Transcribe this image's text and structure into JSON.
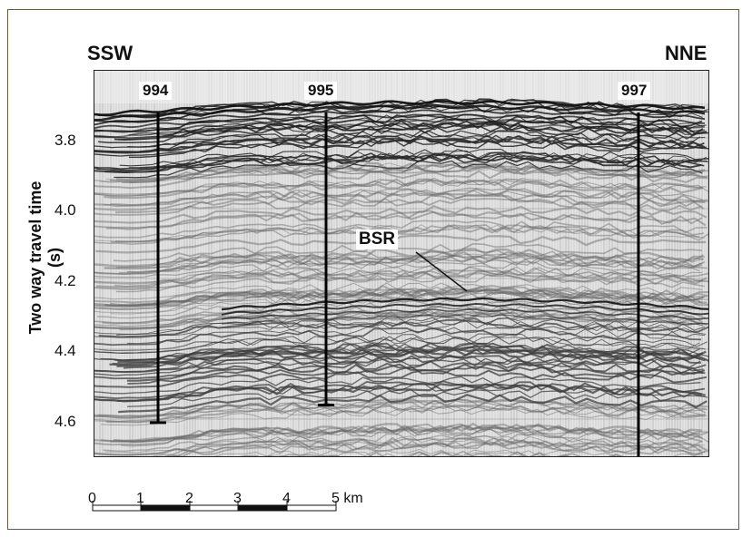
{
  "directions": {
    "left": "SSW",
    "right": "NNE"
  },
  "y_axis": {
    "label": "Two way travel time (s)",
    "ticks": [
      "3.8",
      "4.0",
      "4.2",
      "4.4",
      "4.6"
    ]
  },
  "sites": [
    {
      "label": "994",
      "base_time_s": 4.61
    },
    {
      "label": "995",
      "base_time_s": 4.56
    },
    {
      "label": "997",
      "base_time_s": 4.71
    }
  ],
  "annotation": {
    "label": "BSR"
  },
  "scale_bar": {
    "ticks": [
      "0",
      "1",
      "2",
      "3",
      "4",
      "5 km"
    ]
  },
  "colors": {
    "frame": "#6b5b3e",
    "ink": "#111111",
    "seismic_bg": "#e4e4e4"
  }
}
